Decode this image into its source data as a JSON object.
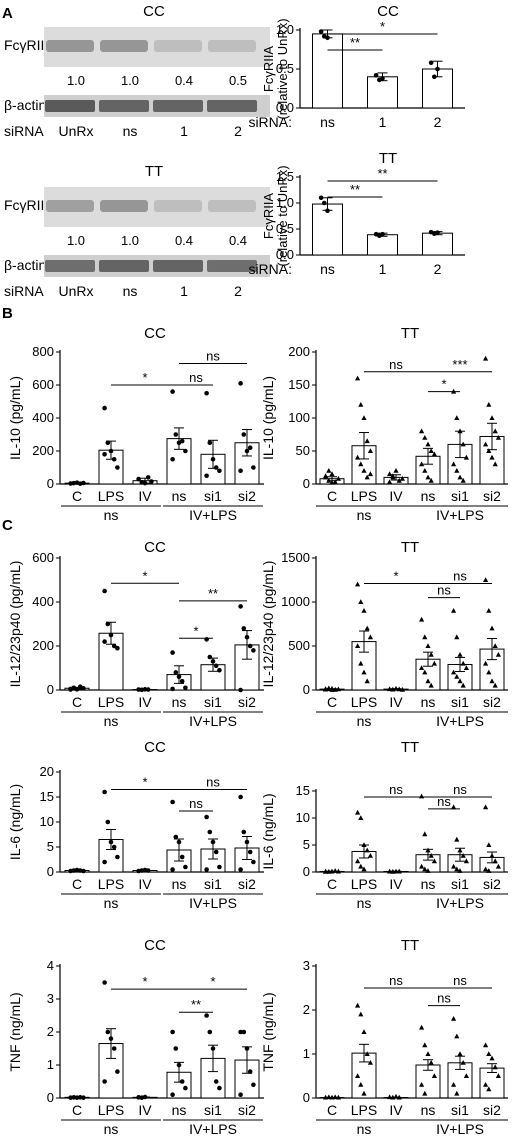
{
  "panels": {
    "A": "A",
    "B": "B",
    "C": "C"
  },
  "blots": [
    {
      "title": "CC",
      "target": "FcγRIIA",
      "loading": "β-actin",
      "ratios": [
        "1.0",
        "1.0",
        "0.4",
        "0.5"
      ],
      "lanes_label": "siRNA",
      "lanes": [
        "UnRx",
        "ns",
        "1",
        "2"
      ],
      "band_intensity_target": [
        0.35,
        0.35,
        0.15,
        0.15
      ],
      "band_intensity_loading": [
        0.55,
        0.5,
        0.5,
        0.5
      ]
    },
    {
      "title": "TT",
      "target": "FcγRIIA",
      "loading": "β-actin",
      "ratios": [
        "1.0",
        "1.0",
        "0.4",
        "0.4"
      ],
      "lanes_label": "siRNA",
      "lanes": [
        "UnRx",
        "ns",
        "1",
        "2"
      ],
      "band_intensity_target": [
        0.3,
        0.35,
        0.15,
        0.15
      ],
      "band_intensity_loading": [
        0.45,
        0.5,
        0.5,
        0.45
      ]
    }
  ],
  "chart_data": [
    {
      "id": "A-CC",
      "type": "bar",
      "title": "CC",
      "ylabel": "FcγRIIA (relative to UnRx)",
      "xprefix": "siRNA:",
      "categories": [
        "ns",
        "1",
        "2"
      ],
      "values": [
        0.95,
        0.4,
        0.5
      ],
      "errors": [
        0.05,
        0.05,
        0.1
      ],
      "points": [
        [
          0.98,
          0.92,
          0.9
        ],
        [
          0.42,
          0.36,
          0.38
        ],
        [
          0.58,
          0.4,
          0.5
        ]
      ],
      "ylim": [
        0,
        1.0
      ],
      "yticks": [
        0.0,
        0.5,
        1.0
      ],
      "ytick_labels": [
        "0.0",
        "0.5",
        "1.0"
      ],
      "marker": "circle",
      "sig": [
        {
          "from": 0,
          "to": 1,
          "label": "**"
        },
        {
          "from": 0,
          "to": 2,
          "label": "*"
        }
      ]
    },
    {
      "id": "A-TT",
      "type": "bar",
      "title": "TT",
      "ylabel": "FcγRIIA (relative to UnRx)",
      "xprefix": "siRNA:",
      "categories": [
        "ns",
        "1",
        "2"
      ],
      "values": [
        0.98,
        0.39,
        0.42
      ],
      "errors": [
        0.12,
        0.03,
        0.03
      ],
      "points": [
        [
          1.1,
          1.0,
          0.85
        ],
        [
          0.4,
          0.37,
          0.4
        ],
        [
          0.44,
          0.41,
          0.43
        ]
      ],
      "ylim": [
        0,
        1.5
      ],
      "yticks": [
        0.0,
        0.5,
        1.0,
        1.5
      ],
      "ytick_labels": [
        "0.0",
        "0.5",
        "1.0",
        "1.5"
      ],
      "marker": "circle",
      "sig": [
        {
          "from": 0,
          "to": 1,
          "label": "**"
        },
        {
          "from": 0,
          "to": 2,
          "label": "**"
        }
      ]
    },
    {
      "id": "B-CC",
      "type": "bar",
      "title": "CC",
      "ylabel": "IL-10 (pg/mL)",
      "categories": [
        "C",
        "LPS",
        "IV",
        "ns",
        "si1",
        "si2"
      ],
      "values": [
        5,
        205,
        20,
        275,
        180,
        250
      ],
      "errors": [
        3,
        55,
        15,
        65,
        85,
        80
      ],
      "points": [
        [
          3,
          5,
          8,
          2,
          6
        ],
        [
          460,
          250,
          200,
          150,
          100,
          180
        ],
        [
          30,
          10,
          5,
          40,
          15
        ],
        [
          560,
          300,
          250,
          260,
          200,
          150
        ],
        [
          550,
          250,
          150,
          100,
          80,
          50
        ],
        [
          610,
          300,
          200,
          220,
          100,
          80
        ]
      ],
      "ylim": [
        0,
        800
      ],
      "yticks": [
        0,
        200,
        400,
        600,
        800
      ],
      "ytick_labels": [
        "0",
        "200",
        "400",
        "600",
        "800"
      ],
      "marker": "circle",
      "groups": [
        {
          "label": "ns",
          "from": 0,
          "to": 2
        },
        {
          "label": "IV+LPS",
          "from": 3,
          "to": 5
        }
      ],
      "sig": [
        {
          "from": 1,
          "to": 3,
          "label": "*",
          "y": 600
        },
        {
          "from": 3,
          "to": 4,
          "label": "ns",
          "y": 600
        },
        {
          "from": 3,
          "to": 5,
          "label": "ns",
          "y": 730
        }
      ]
    },
    {
      "id": "B-TT",
      "type": "bar",
      "title": "TT",
      "ylabel": "IL-10 (pg/mL)",
      "categories": [
        "C",
        "LPS",
        "IV",
        "ns",
        "si1",
        "si2"
      ],
      "values": [
        8,
        58,
        10,
        42,
        60,
        72
      ],
      "errors": [
        3,
        20,
        4,
        12,
        20,
        20
      ],
      "points": [
        [
          10,
          5,
          15,
          3,
          8,
          12,
          20,
          2
        ],
        [
          160,
          120,
          100,
          65,
          50,
          40,
          30,
          20,
          10,
          15
        ],
        [
          15,
          10,
          20,
          5,
          8,
          3,
          12
        ],
        [
          80,
          70,
          60,
          50,
          45,
          30,
          20,
          10,
          5
        ],
        [
          140,
          100,
          80,
          60,
          40,
          30,
          20,
          10,
          5
        ],
        [
          190,
          120,
          100,
          80,
          70,
          60,
          50,
          40,
          30
        ]
      ],
      "ylim": [
        0,
        200
      ],
      "yticks": [
        0,
        50,
        100,
        150,
        200
      ],
      "ytick_labels": [
        "0",
        "50",
        "100",
        "150",
        "200"
      ],
      "marker": "triangle",
      "groups": [
        {
          "label": "ns",
          "from": 0,
          "to": 2
        },
        {
          "label": "IV+LPS",
          "from": 3,
          "to": 5
        }
      ],
      "sig": [
        {
          "from": 1,
          "to": 3,
          "label": "ns",
          "y": 170
        },
        {
          "from": 3,
          "to": 4,
          "label": "*",
          "y": 140
        },
        {
          "from": 3,
          "to": 5,
          "label": "***",
          "y": 170
        }
      ]
    },
    {
      "id": "C-CC-IL12",
      "type": "bar",
      "title": "CC",
      "ylabel": "IL-12/23p40 (pg/mL)",
      "categories": [
        "C",
        "LPS",
        "IV",
        "ns",
        "si1",
        "si2"
      ],
      "values": [
        8,
        258,
        2,
        70,
        115,
        205
      ],
      "errors": [
        4,
        50,
        1,
        40,
        30,
        65
      ],
      "points": [
        [
          5,
          10,
          3,
          15,
          8,
          2
        ],
        [
          450,
          300,
          250,
          200,
          190,
          220
        ],
        [
          2,
          1,
          3,
          2
        ],
        [
          170,
          80,
          60,
          40,
          10,
          5
        ],
        [
          230,
          150,
          130,
          110,
          90
        ],
        [
          380,
          280,
          240,
          200,
          180,
          0
        ]
      ],
      "ylim": [
        0,
        600
      ],
      "yticks": [
        0,
        200,
        400,
        600
      ],
      "ytick_labels": [
        "0",
        "200",
        "400",
        "600"
      ],
      "marker": "circle",
      "groups": [
        {
          "label": "ns",
          "from": 0,
          "to": 2
        },
        {
          "label": "IV+LPS",
          "from": 3,
          "to": 5
        }
      ],
      "sig": [
        {
          "from": 1,
          "to": 3,
          "label": "*",
          "y": 485
        },
        {
          "from": 3,
          "to": 4,
          "label": "*",
          "y": 235
        },
        {
          "from": 3,
          "to": 5,
          "label": "**",
          "y": 405
        }
      ]
    },
    {
      "id": "C-TT-IL12",
      "type": "bar",
      "title": "TT",
      "ylabel": "IL-12/23p40 (pg/mL)",
      "categories": [
        "C",
        "LPS",
        "IV",
        "ns",
        "si1",
        "si2"
      ],
      "values": [
        10,
        550,
        10,
        350,
        290,
        465
      ],
      "errors": [
        5,
        120,
        5,
        80,
        80,
        120
      ],
      "points": [
        [
          5,
          10,
          15,
          3,
          8,
          12,
          20,
          2
        ],
        [
          1200,
          1000,
          900,
          700,
          600,
          500,
          300,
          200,
          100
        ],
        [
          10,
          5,
          15,
          8,
          3
        ],
        [
          800,
          600,
          500,
          400,
          300,
          250,
          200,
          100,
          50
        ],
        [
          900,
          600,
          400,
          300,
          250,
          200,
          150,
          100,
          50
        ],
        [
          1250,
          900,
          700,
          500,
          400,
          300,
          200,
          100,
          50
        ]
      ],
      "ylim": [
        0,
        1500
      ],
      "yticks": [
        0,
        500,
        1000,
        1500
      ],
      "ytick_labels": [
        "0",
        "500",
        "1000",
        "1500"
      ],
      "marker": "triangle",
      "groups": [
        {
          "label": "ns",
          "from": 0,
          "to": 2
        },
        {
          "label": "IV+LPS",
          "from": 3,
          "to": 5
        }
      ],
      "sig": [
        {
          "from": 1,
          "to": 3,
          "label": "*",
          "y": 1210
        },
        {
          "from": 3,
          "to": 4,
          "label": "ns",
          "y": 1050
        },
        {
          "from": 3,
          "to": 5,
          "label": "ns",
          "y": 1210
        }
      ]
    },
    {
      "id": "C-CC-IL6",
      "type": "bar",
      "title": "CC",
      "ylabel": "IL-6 (ng/mL)",
      "categories": [
        "C",
        "LPS",
        "IV",
        "ns",
        "si1",
        "si2"
      ],
      "values": [
        0.3,
        6.5,
        0.3,
        4.4,
        4.6,
        4.8
      ],
      "errors": [
        0.1,
        2.0,
        0.1,
        2.2,
        2.0,
        2.3
      ],
      "points": [
        [
          0.2,
          0.3,
          0.4,
          0.3,
          0.2
        ],
        [
          16,
          10,
          6,
          5,
          3,
          2
        ],
        [
          0.2,
          0.3,
          0.4,
          0.3
        ],
        [
          14,
          7,
          6,
          3,
          1,
          0.5
        ],
        [
          11,
          8,
          6,
          4,
          1,
          0.5
        ],
        [
          15,
          8,
          6,
          4,
          2,
          0.5
        ]
      ],
      "ylim": [
        0,
        20
      ],
      "yticks": [
        0,
        5,
        10,
        15,
        20
      ],
      "ytick_labels": [
        "0",
        "5",
        "10",
        "15",
        "20"
      ],
      "marker": "circle",
      "groups": [
        {
          "label": "ns",
          "from": 0,
          "to": 2
        },
        {
          "label": "IV+LPS",
          "from": 3,
          "to": 5
        }
      ],
      "sig": [
        {
          "from": 1,
          "to": 3,
          "label": "*",
          "y": 16.5
        },
        {
          "from": 3,
          "to": 4,
          "label": "ns",
          "y": 12.2
        },
        {
          "from": 3,
          "to": 5,
          "label": "ns",
          "y": 16.5
        }
      ]
    },
    {
      "id": "C-TT-IL6",
      "type": "bar",
      "title": "TT",
      "ylabel": "IL-6 (ng/mL)",
      "categories": [
        "C",
        "LPS",
        "IV",
        "ns",
        "si1",
        "si2"
      ],
      "values": [
        0.1,
        3.8,
        0.1,
        3.2,
        3.2,
        2.7
      ],
      "errors": [
        0.05,
        1.2,
        0.05,
        1.0,
        1.2,
        1.0
      ],
      "points": [
        [
          0.1,
          0.05,
          0.1,
          0.2,
          0.1,
          0.05
        ],
        [
          11,
          10,
          5,
          4,
          3,
          2,
          1,
          0.5
        ],
        [
          0.1,
          0.05,
          0.1,
          0.1
        ],
        [
          14,
          7,
          4,
          3,
          2,
          1,
          0.5,
          0.2
        ],
        [
          12,
          6,
          4,
          3,
          2,
          1,
          0.5,
          0.2
        ],
        [
          12,
          5,
          3,
          2,
          1,
          0.5,
          0.2
        ]
      ],
      "ylim": [
        0,
        15
      ],
      "yticks": [
        0,
        5,
        10,
        15
      ],
      "ytick_labels": [
        "0",
        "5",
        "10",
        "15"
      ],
      "marker": "triangle",
      "groups": [
        {
          "label": "ns",
          "from": 0,
          "to": 2
        },
        {
          "label": "IV+LPS",
          "from": 3,
          "to": 5
        }
      ],
      "sig": [
        {
          "from": 1,
          "to": 3,
          "label": "ns",
          "y": 13.9
        },
        {
          "from": 3,
          "to": 4,
          "label": "ns",
          "y": 11.7
        },
        {
          "from": 3,
          "to": 5,
          "label": "ns",
          "y": 13.9
        }
      ]
    },
    {
      "id": "C-CC-TNF",
      "type": "bar",
      "title": "CC",
      "ylabel": "TNF (ng/mL)",
      "categories": [
        "C",
        "LPS",
        "IV",
        "ns",
        "si1",
        "si2"
      ],
      "values": [
        0.02,
        1.65,
        0.02,
        0.78,
        1.2,
        1.15
      ],
      "errors": [
        0.01,
        0.45,
        0.01,
        0.3,
        0.4,
        0.4
      ],
      "points": [
        [
          0.01,
          0.02,
          0.01,
          0.02,
          0.01
        ],
        [
          3.5,
          2.0,
          1.8,
          1.5,
          0.8,
          0.5
        ],
        [
          0.02,
          0.01,
          0.03
        ],
        [
          2.0,
          1.5,
          1.0,
          0.5,
          0.3,
          0.1
        ],
        [
          2.5,
          2.0,
          1.5,
          0.5,
          0.3
        ],
        [
          2.0,
          2.0,
          1.5,
          0.8,
          0.4,
          0.1
        ]
      ],
      "ylim": [
        0,
        4
      ],
      "yticks": [
        0,
        1,
        2,
        3,
        4
      ],
      "ytick_labels": [
        "0",
        "1",
        "2",
        "3",
        "4"
      ],
      "marker": "circle",
      "groups": [
        {
          "label": "ns",
          "from": 0,
          "to": 2
        },
        {
          "label": "IV+LPS",
          "from": 3,
          "to": 5
        }
      ],
      "sig": [
        {
          "from": 1,
          "to": 3,
          "label": "*",
          "y": 3.3
        },
        {
          "from": 3,
          "to": 4,
          "label": "**",
          "y": 2.6
        },
        {
          "from": 3,
          "to": 5,
          "label": "*",
          "y": 3.3
        }
      ]
    },
    {
      "id": "C-TT-TNF",
      "type": "bar",
      "title": "TT",
      "ylabel": "TNF (ng/mL)",
      "categories": [
        "C",
        "LPS",
        "IV",
        "ns",
        "si1",
        "si2"
      ],
      "values": [
        0.01,
        1.02,
        0.01,
        0.75,
        0.8,
        0.68
      ],
      "errors": [
        0.005,
        0.2,
        0.005,
        0.12,
        0.15,
        0.1
      ],
      "points": [
        [
          0.01,
          0.02,
          0.01,
          0.02,
          0.01
        ],
        [
          2.1,
          1.9,
          1.5,
          1.0,
          0.8,
          0.5,
          0.3,
          0.1
        ],
        [
          0.02,
          0.01,
          0.03,
          0.01
        ],
        [
          1.6,
          1.2,
          1.0,
          0.8,
          0.5,
          0.3,
          0.1
        ],
        [
          1.8,
          1.4,
          1.0,
          0.8,
          0.5,
          0.3,
          0.1
        ],
        [
          1.2,
          1.0,
          0.9,
          0.7,
          0.5,
          0.3,
          0.2
        ]
      ],
      "ylim": [
        0,
        3
      ],
      "yticks": [
        0,
        1,
        2,
        3
      ],
      "ytick_labels": [
        "0",
        "1",
        "2",
        "3"
      ],
      "marker": "triangle",
      "groups": [
        {
          "label": "ns",
          "from": 0,
          "to": 2
        },
        {
          "label": "IV+LPS",
          "from": 3,
          "to": 5
        }
      ],
      "sig": [
        {
          "from": 1,
          "to": 3,
          "label": "ns",
          "y": 2.5
        },
        {
          "from": 3,
          "to": 4,
          "label": "ns",
          "y": 2.1
        },
        {
          "from": 3,
          "to": 5,
          "label": "ns",
          "y": 2.5
        }
      ]
    }
  ]
}
